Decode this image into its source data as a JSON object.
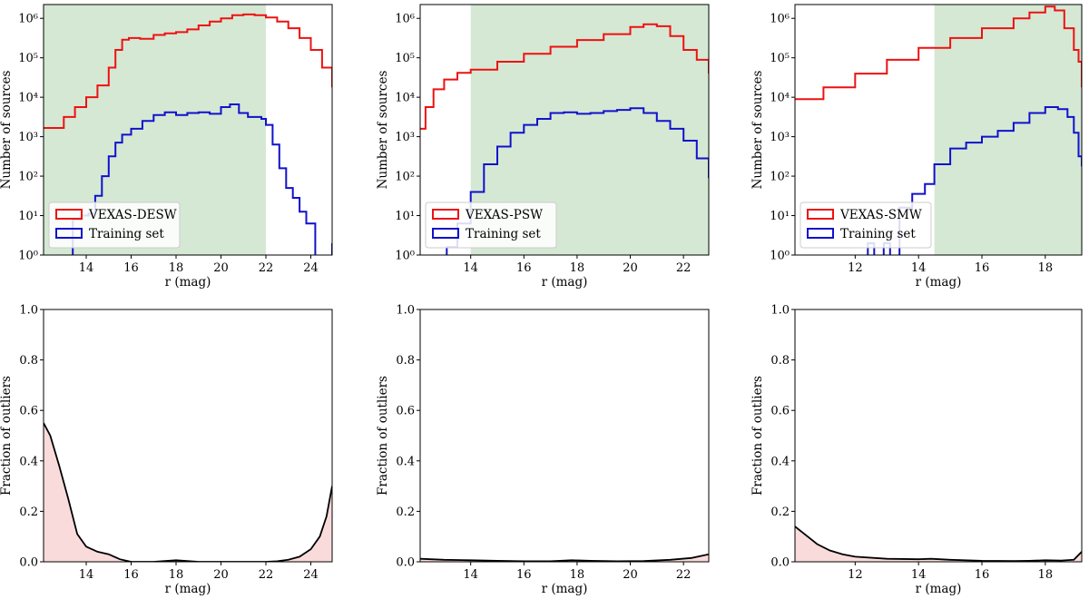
{
  "chart_data": [
    {
      "type": "histogram-step",
      "scale": "log",
      "xlabel": "r (mag)",
      "ylabel": "Number of sources",
      "xlim": [
        12.1,
        24.95
      ],
      "ylim_exp": [
        0,
        6.35
      ],
      "xticks": [
        14,
        16,
        18,
        20,
        22,
        24
      ],
      "yticks": [
        {
          "e": 0,
          "label": "10⁰"
        },
        {
          "e": 1,
          "label": "10¹"
        },
        {
          "e": 2,
          "label": "10²"
        },
        {
          "e": 3,
          "label": "10³"
        },
        {
          "e": 4,
          "label": "10⁴"
        },
        {
          "e": 5,
          "label": "10⁵"
        },
        {
          "e": 6,
          "label": "10⁶"
        }
      ],
      "shade": {
        "from": 12.1,
        "to": 22.0,
        "color": "#d5e8d4"
      },
      "legend": {
        "position": "lower-left"
      },
      "series": [
        {
          "name": "VEXAS-DESW",
          "color": "#ee1111",
          "points": [
            [
              12.1,
              3.22
            ],
            [
              13,
              3.5
            ],
            [
              13.5,
              3.75
            ],
            [
              14,
              4.0
            ],
            [
              14.5,
              4.3
            ],
            [
              15,
              4.75
            ],
            [
              15.3,
              5.2
            ],
            [
              15.6,
              5.46
            ],
            [
              15.9,
              5.5
            ],
            [
              16.4,
              5.48
            ],
            [
              17,
              5.58
            ],
            [
              17.5,
              5.62
            ],
            [
              18,
              5.65
            ],
            [
              18.5,
              5.72
            ],
            [
              19,
              5.82
            ],
            [
              19.5,
              5.92
            ],
            [
              20,
              6.0
            ],
            [
              20.5,
              6.08
            ],
            [
              21,
              6.1
            ],
            [
              21.5,
              6.08
            ],
            [
              22,
              6.02
            ],
            [
              22.5,
              5.92
            ],
            [
              23,
              5.75
            ],
            [
              23.5,
              5.5
            ],
            [
              24,
              5.2
            ],
            [
              24.5,
              4.75
            ],
            [
              24.95,
              4.25
            ]
          ]
        },
        {
          "name": "Training set",
          "color": "#1111cc",
          "points": [
            [
              12.3,
              -0.5
            ],
            [
              13.2,
              -0.5
            ],
            [
              13.4,
              0.9
            ],
            [
              13.8,
              1.0
            ],
            [
              14.1,
              1.05
            ],
            [
              14.4,
              1.5
            ],
            [
              14.7,
              2.0
            ],
            [
              15,
              2.5
            ],
            [
              15.3,
              2.85
            ],
            [
              15.6,
              3.05
            ],
            [
              16,
              3.2
            ],
            [
              16.5,
              3.4
            ],
            [
              17,
              3.55
            ],
            [
              17.5,
              3.62
            ],
            [
              18,
              3.55
            ],
            [
              18.5,
              3.6
            ],
            [
              19,
              3.62
            ],
            [
              19.5,
              3.58
            ],
            [
              20,
              3.75
            ],
            [
              20.4,
              3.82
            ],
            [
              20.8,
              3.6
            ],
            [
              21.2,
              3.5
            ],
            [
              21.8,
              3.45
            ],
            [
              22,
              3.3
            ],
            [
              22.3,
              2.8
            ],
            [
              22.6,
              2.2
            ],
            [
              22.9,
              1.7
            ],
            [
              23.2,
              1.45
            ],
            [
              23.5,
              1.1
            ],
            [
              23.8,
              0.8
            ],
            [
              24.2,
              -0.5
            ],
            [
              24.7,
              -0.5
            ],
            [
              24.95,
              0.3
            ]
          ]
        }
      ]
    },
    {
      "type": "histogram-step",
      "scale": "log",
      "xlabel": "r (mag)",
      "ylabel": "Number of sources",
      "xlim": [
        12.1,
        22.95
      ],
      "ylim_exp": [
        0,
        6.35
      ],
      "xticks": [
        14,
        16,
        18,
        20,
        22
      ],
      "yticks": [
        {
          "e": 0,
          "label": "10⁰"
        },
        {
          "e": 1,
          "label": "10¹"
        },
        {
          "e": 2,
          "label": "10²"
        },
        {
          "e": 3,
          "label": "10³"
        },
        {
          "e": 4,
          "label": "10⁴"
        },
        {
          "e": 5,
          "label": "10⁵"
        },
        {
          "e": 6,
          "label": "10⁶"
        }
      ],
      "shade": {
        "from": 14.0,
        "to": 22.95,
        "color": "#d5e8d4"
      },
      "legend": {
        "position": "lower-left"
      },
      "series": [
        {
          "name": "VEXAS-PSW",
          "color": "#ee1111",
          "points": [
            [
              12.1,
              3.2
            ],
            [
              12.3,
              3.75
            ],
            [
              12.6,
              4.2
            ],
            [
              13,
              4.45
            ],
            [
              13.5,
              4.62
            ],
            [
              14,
              4.7
            ],
            [
              15,
              4.9
            ],
            [
              16,
              5.1
            ],
            [
              17,
              5.28
            ],
            [
              18,
              5.45
            ],
            [
              19,
              5.6
            ],
            [
              20,
              5.78
            ],
            [
              20.5,
              5.85
            ],
            [
              21,
              5.8
            ],
            [
              21.5,
              5.55
            ],
            [
              22,
              5.2
            ],
            [
              22.5,
              4.95
            ],
            [
              22.95,
              4.6
            ]
          ]
        },
        {
          "name": "Training set",
          "color": "#1111cc",
          "points": [
            [
              12.1,
              -0.5
            ],
            [
              12.8,
              -0.5
            ],
            [
              13.1,
              0.2
            ],
            [
              13.5,
              0.8
            ],
            [
              14,
              1.6
            ],
            [
              14.5,
              2.3
            ],
            [
              15,
              2.75
            ],
            [
              15.5,
              3.1
            ],
            [
              16,
              3.3
            ],
            [
              16.5,
              3.45
            ],
            [
              17,
              3.6
            ],
            [
              17.5,
              3.62
            ],
            [
              18,
              3.58
            ],
            [
              18.5,
              3.6
            ],
            [
              19,
              3.65
            ],
            [
              19.5,
              3.68
            ],
            [
              20,
              3.72
            ],
            [
              20.5,
              3.6
            ],
            [
              21,
              3.4
            ],
            [
              21.5,
              3.2
            ],
            [
              22,
              2.9
            ],
            [
              22.5,
              2.45
            ],
            [
              22.95,
              1.95
            ]
          ]
        }
      ]
    },
    {
      "type": "histogram-step",
      "scale": "log",
      "xlabel": "r (mag)",
      "ylabel": "Number of sources",
      "xlim": [
        10.1,
        19.15
      ],
      "ylim_exp": [
        0,
        6.35
      ],
      "xticks": [
        12,
        14,
        16,
        18
      ],
      "yticks": [
        {
          "e": 0,
          "label": "10⁰"
        },
        {
          "e": 1,
          "label": "10¹"
        },
        {
          "e": 2,
          "label": "10²"
        },
        {
          "e": 3,
          "label": "10³"
        },
        {
          "e": 4,
          "label": "10⁴"
        },
        {
          "e": 5,
          "label": "10⁵"
        },
        {
          "e": 6,
          "label": "10⁶"
        }
      ],
      "shade": {
        "from": 14.5,
        "to": 19.15,
        "color": "#d5e8d4"
      },
      "legend": {
        "position": "lower-left"
      },
      "series": [
        {
          "name": "VEXAS-SMW",
          "color": "#ee1111",
          "points": [
            [
              10.1,
              3.95
            ],
            [
              11,
              4.25
            ],
            [
              12,
              4.6
            ],
            [
              13,
              4.95
            ],
            [
              14,
              5.25
            ],
            [
              15,
              5.5
            ],
            [
              16,
              5.75
            ],
            [
              17,
              6.0
            ],
            [
              17.5,
              6.15
            ],
            [
              18,
              6.3
            ],
            [
              18.3,
              6.2
            ],
            [
              18.6,
              5.75
            ],
            [
              18.9,
              5.2
            ],
            [
              19.05,
              4.9
            ],
            [
              19.15,
              4.25
            ]
          ]
        },
        {
          "name": "Training set",
          "color": "#1111cc",
          "points": [
            [
              12.1,
              -0.5
            ],
            [
              12.4,
              0.3
            ],
            [
              12.6,
              -0.5
            ],
            [
              12.9,
              0.3
            ],
            [
              13.1,
              -0.5
            ],
            [
              13.4,
              1.2
            ],
            [
              13.8,
              1.55
            ],
            [
              14.2,
              1.8
            ],
            [
              14.5,
              2.3
            ],
            [
              15,
              2.7
            ],
            [
              15.5,
              2.85
            ],
            [
              16,
              3.0
            ],
            [
              16.5,
              3.15
            ],
            [
              17,
              3.35
            ],
            [
              17.5,
              3.6
            ],
            [
              18,
              3.75
            ],
            [
              18.4,
              3.7
            ],
            [
              18.7,
              3.5
            ],
            [
              18.9,
              3.1
            ],
            [
              19.05,
              2.5
            ],
            [
              19.15,
              2.25
            ]
          ]
        }
      ]
    },
    {
      "type": "area",
      "xlabel": "r (mag)",
      "ylabel": "Fraction of outliers",
      "xlim": [
        12.1,
        24.95
      ],
      "ylim": [
        0,
        1
      ],
      "xticks": [
        14,
        16,
        18,
        20,
        22,
        24
      ],
      "yticks": [
        {
          "v": 0,
          "label": "0.0"
        },
        {
          "v": 0.2,
          "label": "0.2"
        },
        {
          "v": 0.4,
          "label": "0.4"
        },
        {
          "v": 0.6,
          "label": "0.6"
        },
        {
          "v": 0.8,
          "label": "0.8"
        },
        {
          "v": 1,
          "label": "1.0"
        }
      ],
      "fill": "#fadbdb",
      "line_color": "#000000",
      "points": [
        [
          12.1,
          0.55
        ],
        [
          12.4,
          0.5
        ],
        [
          12.8,
          0.38
        ],
        [
          13.2,
          0.25
        ],
        [
          13.6,
          0.11
        ],
        [
          14,
          0.06
        ],
        [
          14.5,
          0.04
        ],
        [
          15,
          0.03
        ],
        [
          15.5,
          0.01
        ],
        [
          16,
          0.0
        ],
        [
          17,
          0.0
        ],
        [
          17.5,
          0.003
        ],
        [
          18,
          0.006
        ],
        [
          18.5,
          0.003
        ],
        [
          19,
          0.0
        ],
        [
          20,
          0.0
        ],
        [
          21,
          0.0
        ],
        [
          22,
          0.0
        ],
        [
          22.5,
          0.002
        ],
        [
          23,
          0.008
        ],
        [
          23.5,
          0.02
        ],
        [
          24,
          0.05
        ],
        [
          24.4,
          0.1
        ],
        [
          24.7,
          0.18
        ],
        [
          24.95,
          0.3
        ]
      ]
    },
    {
      "type": "area",
      "xlabel": "r (mag)",
      "ylabel": "Fraction of outliers",
      "xlim": [
        12.1,
        22.95
      ],
      "ylim": [
        0,
        1
      ],
      "xticks": [
        14,
        16,
        18,
        20,
        22
      ],
      "yticks": [
        {
          "v": 0,
          "label": "0.0"
        },
        {
          "v": 0.2,
          "label": "0.2"
        },
        {
          "v": 0.4,
          "label": "0.4"
        },
        {
          "v": 0.6,
          "label": "0.6"
        },
        {
          "v": 0.8,
          "label": "0.8"
        },
        {
          "v": 1,
          "label": "1.0"
        }
      ],
      "fill": "#fadbdb",
      "line_color": "#000000",
      "points": [
        [
          12.1,
          0.012
        ],
        [
          13,
          0.008
        ],
        [
          14,
          0.006
        ],
        [
          15,
          0.004
        ],
        [
          16,
          0.002
        ],
        [
          17,
          0.002
        ],
        [
          17.8,
          0.006
        ],
        [
          18.5,
          0.004
        ],
        [
          19.5,
          0.002
        ],
        [
          20.5,
          0.003
        ],
        [
          21.5,
          0.008
        ],
        [
          22.3,
          0.015
        ],
        [
          22.95,
          0.03
        ]
      ]
    },
    {
      "type": "area",
      "xlabel": "r (mag)",
      "ylabel": "Fraction of outliers",
      "xlim": [
        10.1,
        19.15
      ],
      "ylim": [
        0,
        1
      ],
      "xticks": [
        12,
        14,
        16,
        18
      ],
      "yticks": [
        {
          "v": 0,
          "label": "0.0"
        },
        {
          "v": 0.2,
          "label": "0.2"
        },
        {
          "v": 0.4,
          "label": "0.4"
        },
        {
          "v": 0.6,
          "label": "0.6"
        },
        {
          "v": 0.8,
          "label": "0.8"
        },
        {
          "v": 1,
          "label": "1.0"
        }
      ],
      "fill": "#fadbdb",
      "line_color": "#000000",
      "points": [
        [
          10.1,
          0.14
        ],
        [
          10.4,
          0.11
        ],
        [
          10.8,
          0.07
        ],
        [
          11.2,
          0.045
        ],
        [
          11.6,
          0.03
        ],
        [
          12,
          0.02
        ],
        [
          13,
          0.012
        ],
        [
          14,
          0.01
        ],
        [
          14.4,
          0.012
        ],
        [
          15,
          0.008
        ],
        [
          16,
          0.004
        ],
        [
          17,
          0.003
        ],
        [
          17.5,
          0.004
        ],
        [
          18,
          0.006
        ],
        [
          18.5,
          0.005
        ],
        [
          18.9,
          0.008
        ],
        [
          19.15,
          0.04
        ]
      ]
    }
  ]
}
